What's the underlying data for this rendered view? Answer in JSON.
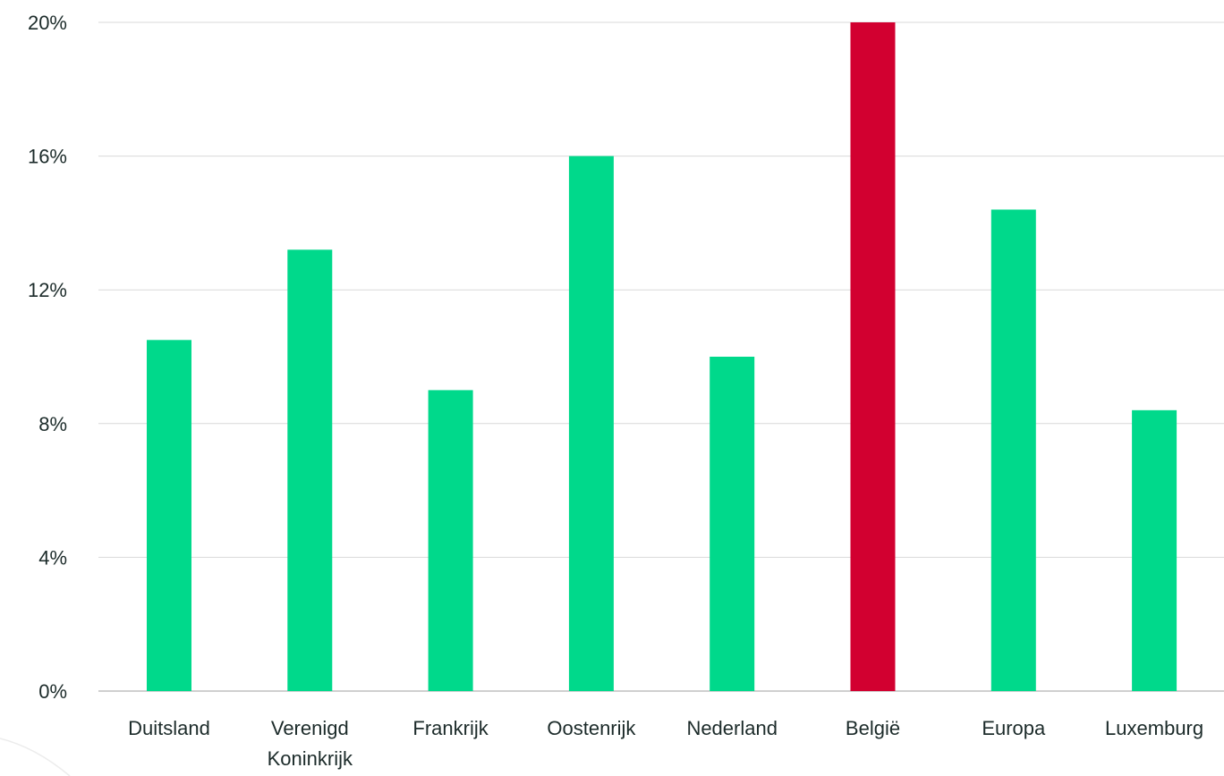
{
  "chart_data": {
    "type": "bar",
    "categories": [
      [
        "Duitsland"
      ],
      [
        "Verenigd",
        "Koninkrijk"
      ],
      [
        "Frankrijk"
      ],
      [
        "Oostenrijk"
      ],
      [
        "Nederland"
      ],
      [
        "België"
      ],
      [
        "Europa"
      ],
      [
        "Luxemburg"
      ]
    ],
    "values": [
      10.5,
      13.2,
      9.0,
      16.0,
      10.0,
      20.0,
      14.4,
      8.4
    ],
    "colors": [
      "#00d98b",
      "#00d98b",
      "#00d98b",
      "#00d98b",
      "#00d98b",
      "#d20030",
      "#00d98b",
      "#00d98b"
    ],
    "ylim": [
      0,
      20
    ],
    "yticks": [
      0,
      4,
      8,
      12,
      16,
      20
    ],
    "ytick_labels": [
      "0%",
      "4%",
      "8%",
      "12%",
      "16%",
      "20%"
    ],
    "grid": true,
    "title": "",
    "xlabel": "",
    "ylabel": ""
  }
}
